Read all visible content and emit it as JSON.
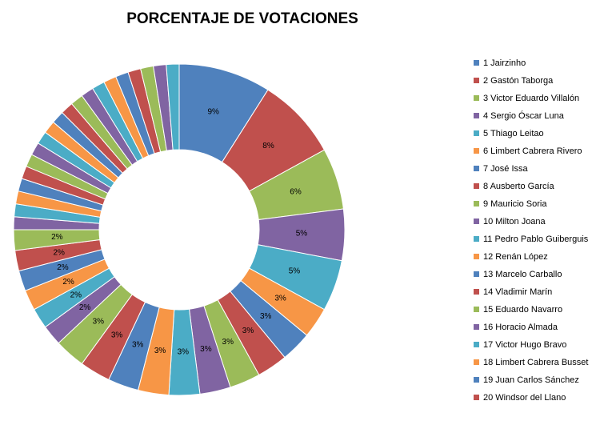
{
  "chart_data": {
    "type": "donut",
    "title": "PORCENTAJE DE VOTACIONES",
    "categories": [
      "1 Jairzinho",
      "2 Gastón Taborga",
      "3 Victor Eduardo Villalón",
      "4 Sergio Óscar Luna",
      "5 Thiago Leitao",
      "6 Limbert Cabrera Rivero",
      "7 José Issa",
      "8 Ausberto García",
      "9 Mauricio Soria",
      "10 Milton Joana",
      "11 Pedro Pablo Guiberguis",
      "12 Renán López",
      "13 Marcelo Carballo",
      "14 Vladimir Marín",
      "15 Eduardo Navarro",
      "16 Horacio Almada",
      "17 Victor Hugo Bravo",
      "18 Limbert Cabrera Busset",
      "19 Juan Carlos Sánchez",
      "20 Windsor del Llano",
      null,
      null,
      null,
      null,
      null,
      null,
      null,
      null,
      null,
      null,
      null,
      null,
      null,
      null,
      null,
      null,
      null,
      null,
      null,
      null,
      null
    ],
    "values": [
      9,
      8,
      6,
      5,
      5,
      3,
      3,
      3,
      3,
      3,
      3,
      3,
      3,
      3,
      3,
      2,
      2,
      2,
      2,
      2,
      2,
      1.25,
      1.25,
      1.25,
      1.25,
      1.25,
      1.25,
      1.25,
      1.25,
      1.25,
      1.25,
      1.25,
      1.25,
      1.25,
      1.25,
      1.25,
      1.25,
      1.25,
      1.25,
      1.25,
      1.25
    ],
    "value_labels": [
      "9%",
      "8%",
      "6%",
      "5%",
      "5%",
      "3%",
      "3%",
      "3%",
      "3%",
      "3%",
      "3%",
      "3%",
      "3%",
      "3%",
      "3%",
      "2%",
      "2%",
      "2%",
      "2%",
      "2%",
      "2%",
      null,
      null,
      null,
      null,
      null,
      null,
      null,
      null,
      null,
      null,
      null,
      null,
      null,
      null,
      null,
      null,
      null,
      null,
      null,
      null
    ],
    "palette": [
      "#4f81bd",
      "#c0504d",
      "#9bbb59",
      "#8064a2",
      "#4bacc6",
      "#f79646"
    ],
    "legend": "right"
  }
}
